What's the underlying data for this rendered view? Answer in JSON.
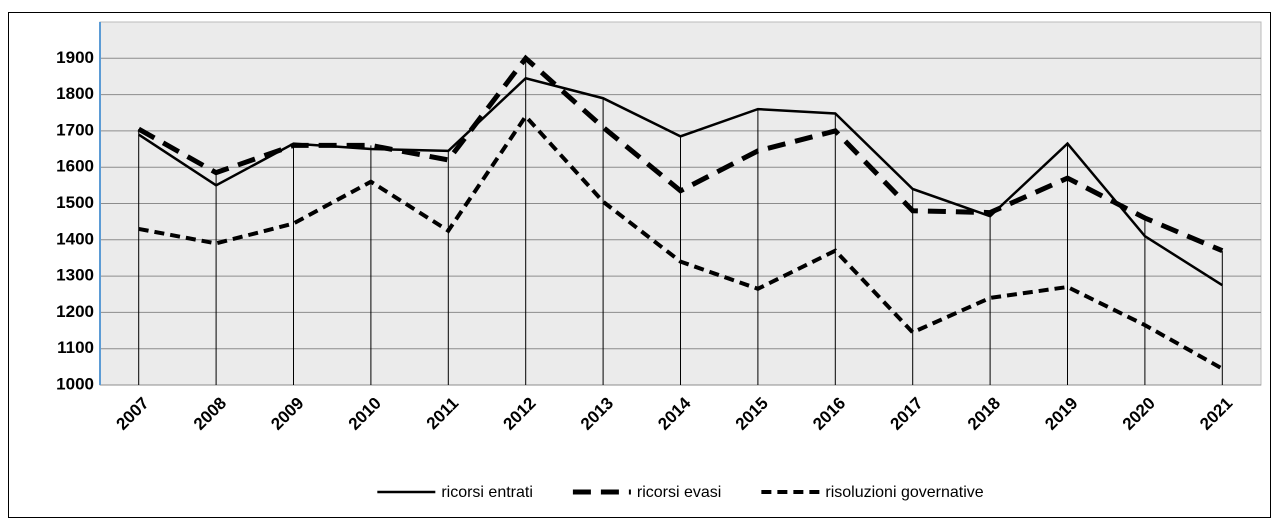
{
  "chart_data": {
    "type": "line",
    "categories": [
      "2007",
      "2008",
      "2009",
      "2010",
      "2011",
      "2012",
      "2013",
      "2014",
      "2015",
      "2016",
      "2017",
      "2018",
      "2019",
      "2020",
      "2021"
    ],
    "series": [
      {
        "name": "ricorsi entrati",
        "color": "#000000",
        "style": "solid",
        "values": [
          1690,
          1550,
          1665,
          1650,
          1645,
          1845,
          1790,
          1685,
          1760,
          1748,
          1540,
          1465,
          1665,
          1410,
          1275
        ]
      },
      {
        "name": "ricorsi evasi",
        "color": "#000000",
        "style": "long-dash",
        "values": [
          1705,
          1585,
          1660,
          1660,
          1620,
          1900,
          1710,
          1535,
          1645,
          1700,
          1480,
          1475,
          1570,
          1460,
          1370
        ]
      },
      {
        "name": "risoluzioni governative",
        "color": "#000000",
        "style": "dash",
        "values": [
          1430,
          1390,
          1445,
          1560,
          1425,
          1740,
          1505,
          1340,
          1265,
          1370,
          1145,
          1240,
          1270,
          1165,
          1045
        ]
      }
    ],
    "ylim": [
      1000,
      2000
    ],
    "yticks": [
      1000,
      1100,
      1200,
      1300,
      1400,
      1500,
      1600,
      1700,
      1800,
      1900
    ],
    "grid": true,
    "drop_lines": true,
    "legend": "bottom"
  }
}
